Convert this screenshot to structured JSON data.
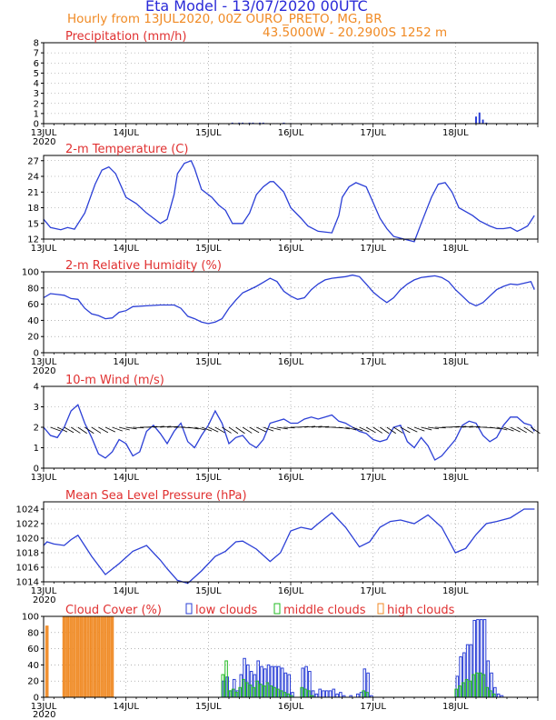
{
  "header": {
    "title": "Eta Model - 13/07/2020 00UTC",
    "subtitle": "Hourly from 13JUL2020, 00Z  OURO_PRETO, MG, BR",
    "location": "43.5000W - 20.2900S    1252  m"
  },
  "colors": {
    "line": "#2b3fd6",
    "title": "#e03030",
    "orange": "#f08a24",
    "green": "#22bb22",
    "grid": "#888888"
  },
  "x_axis": {
    "day_labels": [
      "13JUL",
      "14JUL",
      "15JUL",
      "16JUL",
      "17JUL",
      "18JUL"
    ],
    "year_label": "2020"
  },
  "chart_data": [
    {
      "type": "bar",
      "title": "Precipitation (mm/h)",
      "x_unit": "hours since 13JUL2020 00Z",
      "ylim": [
        0,
        8
      ],
      "yticks": [
        0,
        1,
        2,
        3,
        4,
        5,
        6,
        7,
        8
      ],
      "grid": true,
      "x": [
        55,
        56,
        57,
        58,
        59,
        60,
        61,
        62,
        63,
        64,
        65,
        67,
        68,
        70,
        72,
        85,
        86,
        126,
        127,
        128,
        129
      ],
      "values": [
        0.1,
        0.05,
        0.1,
        0.1,
        0.05,
        0.1,
        0.1,
        0.05,
        0.1,
        0.1,
        0.05,
        0.05,
        0.05,
        0.1,
        0.05,
        0.05,
        0.05,
        0.7,
        1.1,
        0.4,
        0.1
      ]
    },
    {
      "type": "line",
      "title": "2-m Temperature (C)",
      "ylim": [
        12,
        28
      ],
      "yticks": [
        12,
        15,
        18,
        21,
        24,
        27
      ],
      "grid": true,
      "x": [
        0,
        2,
        5,
        7,
        9,
        12,
        15,
        17,
        19,
        21,
        24,
        27,
        30,
        33,
        34,
        36,
        38,
        39,
        41,
        43,
        44,
        46,
        49,
        51,
        53,
        55,
        58,
        60,
        62,
        64,
        66,
        67,
        70,
        72,
        75,
        77,
        80,
        84,
        86,
        87,
        89,
        91,
        94,
        96,
        98,
        100,
        102,
        105,
        108,
        110,
        113,
        115,
        117,
        119,
        121,
        125,
        127,
        130,
        132,
        134,
        136,
        138,
        139,
        141,
        143
      ],
      "values": [
        15.8,
        14.2,
        13.8,
        14.2,
        13.9,
        17.0,
        22.5,
        25.2,
        25.8,
        24.5,
        20.0,
        18.8,
        17.0,
        15.5,
        15.0,
        15.8,
        20.5,
        24.5,
        26.5,
        27.0,
        25.5,
        21.5,
        20.0,
        18.5,
        17.5,
        15.0,
        15.0,
        17.0,
        20.5,
        22.0,
        23.0,
        23.0,
        21.0,
        18.0,
        16.0,
        14.5,
        13.5,
        13.2,
        16.5,
        20.0,
        22.0,
        22.8,
        22.0,
        19.0,
        16.0,
        14.0,
        12.5,
        12.0,
        11.5,
        15.0,
        20.0,
        22.5,
        22.8,
        21.0,
        18.0,
        16.5,
        15.5,
        14.5,
        14.0,
        14.0,
        14.2,
        13.5,
        13.8,
        14.5,
        16.5
      ]
    },
    {
      "type": "line",
      "title": "2-m Relative Humidity (%)",
      "ylim": [
        0,
        100
      ],
      "yticks": [
        0,
        20,
        40,
        60,
        80,
        100
      ],
      "grid": true,
      "x": [
        0,
        2,
        4,
        6,
        8,
        10,
        12,
        14,
        16,
        18,
        20,
        22,
        24,
        26,
        30,
        34,
        38,
        40,
        42,
        44,
        46,
        48,
        50,
        52,
        54,
        56,
        58,
        60,
        62,
        64,
        66,
        68,
        70,
        72,
        74,
        76,
        78,
        80,
        82,
        84,
        86,
        88,
        90,
        92,
        94,
        96,
        98,
        100,
        102,
        104,
        106,
        108,
        110,
        112,
        114,
        116,
        118,
        120,
        122,
        124,
        126,
        128,
        130,
        132,
        134,
        136,
        138,
        140,
        142,
        143
      ],
      "values": [
        68,
        73,
        72,
        71,
        67,
        66,
        55,
        48,
        46,
        42,
        43,
        50,
        52,
        57,
        58,
        59,
        59,
        55,
        45,
        42,
        38,
        36,
        38,
        42,
        55,
        65,
        74,
        78,
        82,
        87,
        92,
        88,
        76,
        70,
        66,
        68,
        78,
        85,
        90,
        92,
        93,
        94,
        96,
        94,
        85,
        75,
        68,
        62,
        68,
        78,
        85,
        90,
        93,
        94,
        95,
        93,
        88,
        78,
        70,
        62,
        58,
        62,
        70,
        78,
        82,
        85,
        84,
        86,
        88,
        78
      ]
    },
    {
      "type": "line",
      "title": "10-m Wind (m/s)",
      "ylim": [
        0,
        4
      ],
      "yticks": [
        0,
        1,
        2,
        3,
        4
      ],
      "grid": true,
      "x": [
        0,
        2,
        4,
        6,
        8,
        10,
        12,
        14,
        16,
        18,
        20,
        22,
        24,
        26,
        28,
        30,
        32,
        34,
        36,
        38,
        40,
        42,
        44,
        46,
        48,
        50,
        52,
        54,
        56,
        58,
        60,
        62,
        64,
        66,
        68,
        70,
        72,
        74,
        76,
        78,
        80,
        82,
        84,
        86,
        88,
        90,
        92,
        94,
        96,
        98,
        100,
        102,
        104,
        106,
        108,
        110,
        112,
        114,
        116,
        118,
        120,
        122,
        124,
        126,
        128,
        130,
        132,
        134,
        136,
        138,
        140,
        142,
        143
      ],
      "values": [
        2.0,
        1.6,
        1.5,
        2.0,
        2.8,
        3.1,
        2.2,
        1.5,
        0.7,
        0.5,
        0.8,
        1.4,
        1.2,
        0.6,
        0.8,
        1.8,
        2.1,
        1.7,
        1.2,
        1.8,
        2.2,
        1.3,
        1.0,
        1.6,
        2.1,
        2.8,
        2.2,
        1.2,
        1.5,
        1.6,
        1.2,
        1.0,
        1.4,
        2.2,
        2.3,
        2.4,
        2.2,
        2.2,
        2.4,
        2.5,
        2.4,
        2.5,
        2.6,
        2.3,
        2.2,
        2.0,
        1.8,
        1.7,
        1.4,
        1.3,
        1.4,
        2.0,
        2.1,
        1.3,
        1.0,
        1.5,
        1.1,
        0.4,
        0.6,
        1.0,
        1.4,
        2.1,
        2.3,
        2.2,
        1.6,
        1.3,
        1.5,
        2.1,
        2.5,
        2.5,
        2.2,
        2.1,
        1.8
      ]
    },
    {
      "type": "line",
      "title": "Mean Sea Level Pressure (hPa)",
      "ylim": [
        1014,
        1025
      ],
      "yticks": [
        1014,
        1016,
        1018,
        1020,
        1022,
        1024
      ],
      "grid": true,
      "x": [
        0,
        1,
        3,
        6,
        8,
        10,
        14,
        18,
        22,
        26,
        30,
        34,
        36,
        39,
        42,
        46,
        50,
        53,
        56,
        58,
        62,
        66,
        69,
        72,
        75,
        78,
        80,
        84,
        88,
        92,
        95,
        98,
        101,
        104,
        108,
        112,
        116,
        120,
        123,
        126,
        129,
        132,
        136,
        140,
        143
      ],
      "values": [
        1019.0,
        1019.5,
        1019.2,
        1019.0,
        1019.8,
        1020.4,
        1017.5,
        1015.0,
        1016.5,
        1018.2,
        1019.0,
        1017.0,
        1015.8,
        1014.2,
        1013.8,
        1015.5,
        1017.5,
        1018.2,
        1019.5,
        1019.6,
        1018.5,
        1016.8,
        1018.0,
        1021.0,
        1021.5,
        1021.2,
        1022.0,
        1023.5,
        1021.5,
        1018.8,
        1019.5,
        1021.5,
        1022.3,
        1022.5,
        1022.0,
        1023.2,
        1021.5,
        1018.0,
        1018.6,
        1020.5,
        1022.0,
        1022.3,
        1022.8,
        1024.0,
        1024.0
      ]
    },
    {
      "type": "bar",
      "title": "Cloud Cover (%)",
      "legend": [
        "low clouds",
        "middle clouds",
        "high clouds"
      ],
      "ylim": [
        0,
        100
      ],
      "yticks": [
        0,
        20,
        40,
        60,
        80,
        100
      ],
      "grid": true,
      "x_hours": [
        1,
        6,
        7,
        8,
        9,
        10,
        11,
        12,
        13,
        14,
        15,
        16,
        17,
        18,
        19,
        20,
        52,
        53,
        54,
        55,
        56,
        57,
        58,
        59,
        60,
        61,
        62,
        63,
        64,
        65,
        66,
        67,
        68,
        69,
        70,
        71,
        72,
        73,
        74,
        75,
        76,
        77,
        78,
        79,
        80,
        81,
        82,
        83,
        84,
        85,
        86,
        87,
        88,
        89,
        90,
        91,
        92,
        93,
        94,
        95,
        96,
        120,
        121,
        122,
        123,
        124,
        125,
        126,
        127,
        128,
        129,
        130,
        131,
        132,
        133
      ],
      "series": [
        {
          "name": "low clouds",
          "values": [
            0,
            0,
            0,
            0,
            0,
            0,
            0,
            0,
            0,
            0,
            0,
            0,
            0,
            0,
            0,
            0,
            20,
            25,
            8,
            22,
            8,
            28,
            48,
            40,
            32,
            28,
            45,
            38,
            35,
            40,
            38,
            38,
            38,
            36,
            30,
            28,
            6,
            0,
            0,
            36,
            38,
            32,
            8,
            4,
            10,
            8,
            8,
            8,
            10,
            4,
            6,
            2,
            0,
            2,
            0,
            4,
            6,
            35,
            30,
            2,
            0,
            26,
            50,
            55,
            65,
            65,
            95,
            96,
            96,
            96,
            45,
            30,
            12,
            4,
            2
          ]
        },
        {
          "name": "middle clouds",
          "values": [
            0,
            0,
            0,
            0,
            0,
            0,
            0,
            0,
            0,
            0,
            0,
            0,
            0,
            0,
            0,
            0,
            28,
            45,
            8,
            10,
            6,
            12,
            22,
            18,
            15,
            12,
            20,
            16,
            14,
            18,
            14,
            12,
            10,
            8,
            6,
            4,
            2,
            0,
            0,
            12,
            10,
            8,
            2,
            0,
            0,
            0,
            0,
            0,
            0,
            0,
            0,
            0,
            0,
            0,
            0,
            0,
            0,
            8,
            6,
            0,
            0,
            10,
            14,
            18,
            22,
            20,
            28,
            30,
            30,
            28,
            12,
            8,
            4,
            0,
            0
          ]
        },
        {
          "name": "high clouds",
          "values": [
            88,
            100,
            100,
            100,
            100,
            100,
            100,
            100,
            100,
            100,
            100,
            100,
            100,
            100,
            100,
            100,
            0,
            0,
            0,
            0,
            0,
            0,
            0,
            0,
            0,
            0,
            0,
            0,
            0,
            0,
            0,
            0,
            0,
            0,
            0,
            0,
            0,
            0,
            0,
            0,
            0,
            0,
            0,
            0,
            0,
            0,
            0,
            0,
            0,
            0,
            0,
            0,
            0,
            0,
            0,
            0,
            0,
            0,
            0,
            0,
            0,
            0,
            0,
            0,
            0,
            0,
            0,
            0,
            0,
            0,
            0,
            0,
            0,
            0,
            0
          ]
        }
      ]
    }
  ]
}
